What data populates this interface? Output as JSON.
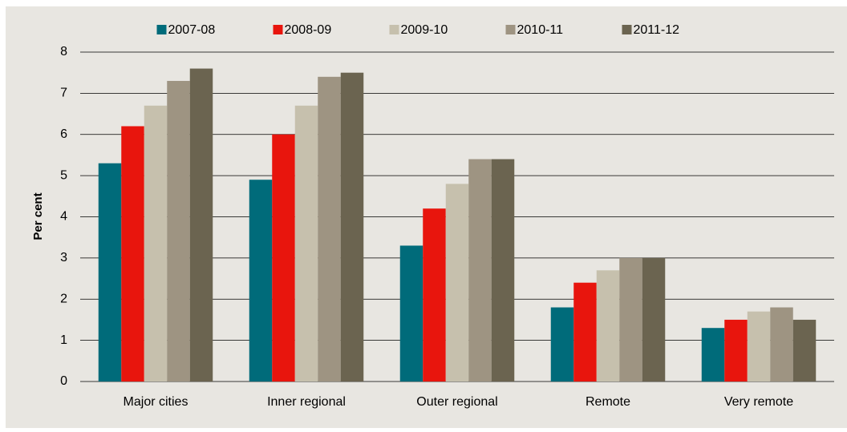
{
  "chart_data": {
    "type": "bar",
    "ylabel": "Per cent",
    "categories": [
      "Major cities",
      "Inner regional",
      "Outer regional",
      "Remote",
      "Very remote"
    ],
    "series": [
      {
        "name": "2007-08",
        "color": "#006b7a",
        "values": [
          5.3,
          4.9,
          3.3,
          1.8,
          1.3
        ]
      },
      {
        "name": "2008-09",
        "color": "#e8150d",
        "values": [
          6.2,
          6.0,
          4.2,
          2.4,
          1.5
        ]
      },
      {
        "name": "2009-10",
        "color": "#c6c0ad",
        "values": [
          6.7,
          6.7,
          4.8,
          2.7,
          1.7
        ]
      },
      {
        "name": "2010-11",
        "color": "#9e9482",
        "values": [
          7.3,
          7.4,
          5.4,
          3.0,
          1.8
        ]
      },
      {
        "name": "2011-12",
        "color": "#6b6450",
        "values": [
          7.6,
          7.5,
          5.4,
          3.0,
          1.5
        ]
      }
    ],
    "ylim": [
      0,
      8
    ],
    "yticks": [
      0,
      1,
      2,
      3,
      4,
      5,
      6,
      7,
      8
    ],
    "grid": true,
    "legend": "top"
  }
}
